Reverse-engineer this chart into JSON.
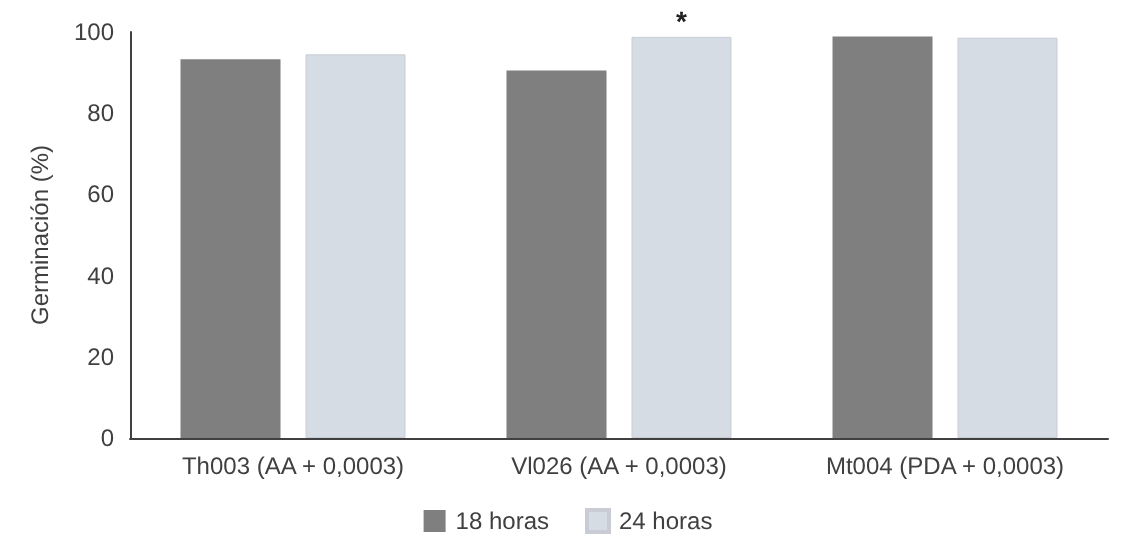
{
  "chart_data": {
    "type": "bar",
    "ylabel": "Germinación (%)",
    "categories": [
      "Th003 (AA + 0,0003)",
      "Vl026 (AA + 0,0003)",
      "Mt004 (PDA + 0,0003)"
    ],
    "series": [
      {
        "name": "18 horas",
        "color": "#7f7f7f",
        "values": [
          93.3,
          90.5,
          98.9
        ]
      },
      {
        "name": "24 horas",
        "color": "#d6dce4",
        "values": [
          94.5,
          98.8,
          98.6
        ]
      }
    ],
    "annotations": [
      "*"
    ],
    "ylim": [
      0,
      100
    ],
    "yticks": [
      0,
      20,
      40,
      60,
      80,
      100
    ],
    "grid": false,
    "legend": "bottom"
  }
}
